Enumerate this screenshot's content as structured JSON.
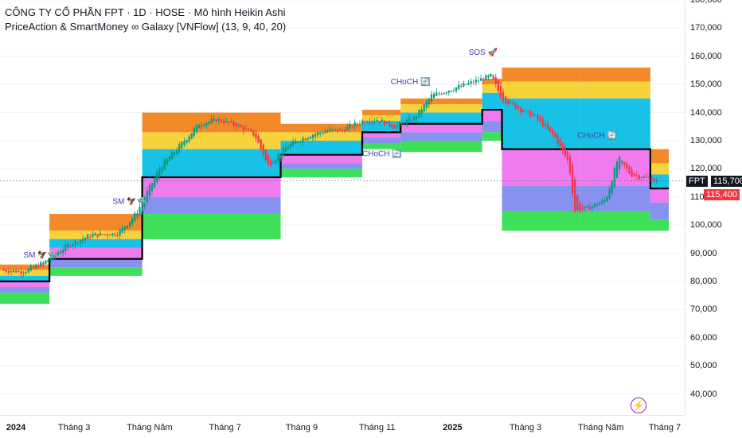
{
  "title": "CÔNG TY CỔ PHẦN FPT · 1D · HOSE · Mô hình Heikin Ashi",
  "indicator": "PriceAction & SmartMoney ∞ Galaxy [VNFlow] (13, 9, 40, 20)",
  "symbol": "FPT",
  "last_price": "115,700",
  "ha_price": "115,400",
  "colors": {
    "up": "#089981",
    "down": "#f23645",
    "orange": "#f38a2a",
    "yellow": "#f6d23b",
    "cyan": "#17c2e6",
    "pink": "#ee7cee",
    "blue": "#8691f0",
    "green": "#3ee05a",
    "trail": "#000000",
    "annotation": "#3e3bb0"
  },
  "price_axis": [
    "180,000",
    "170,000",
    "160,000",
    "150,000",
    "140,000",
    "130,000",
    "120,000",
    "110,000",
    "100,000",
    "90,000",
    "80,000",
    "70,000",
    "60,000",
    "50,000",
    "40,000"
  ],
  "time_axis": [
    {
      "label": "2024",
      "bold": true
    },
    {
      "label": "Tháng 3",
      "bold": false
    },
    {
      "label": "Tháng Năm",
      "bold": false
    },
    {
      "label": "Tháng 7",
      "bold": false
    },
    {
      "label": "Tháng 9",
      "bold": false
    },
    {
      "label": "Tháng 11",
      "bold": false
    },
    {
      "label": "2025",
      "bold": true
    },
    {
      "label": "Tháng 3",
      "bold": false
    },
    {
      "label": "Tháng Năm",
      "bold": false
    },
    {
      "label": "Tháng 7",
      "bold": false
    }
  ],
  "annotations": [
    {
      "text": "SM",
      "icons": "🦅🛸"
    },
    {
      "text": "SM",
      "icons": "🦅🛸"
    },
    {
      "text": "CHoCH",
      "icons": "🔄"
    },
    {
      "text": "CHoCH",
      "icons": "🔄"
    },
    {
      "text": "SOS",
      "icons": "🚀"
    },
    {
      "text": "CHoCH",
      "icons": "🔄"
    }
  ],
  "chart_data": {
    "type": "candlestick",
    "ylim": [
      40000,
      180000
    ],
    "price_path": [
      {
        "date": "2024-01-02",
        "price": 84000
      },
      {
        "date": "2024-01-20",
        "price": 83500
      },
      {
        "date": "2024-02-05",
        "price": 86500
      },
      {
        "date": "2024-02-25",
        "price": 93000
      },
      {
        "date": "2024-03-15",
        "price": 96500
      },
      {
        "date": "2024-04-05",
        "price": 97000
      },
      {
        "date": "2024-04-20",
        "price": 104000
      },
      {
        "date": "2024-05-10",
        "price": 121000
      },
      {
        "date": "2024-05-25",
        "price": 128000
      },
      {
        "date": "2024-06-10",
        "price": 136000
      },
      {
        "date": "2024-06-25",
        "price": 137500
      },
      {
        "date": "2024-07-10",
        "price": 135500
      },
      {
        "date": "2024-07-25",
        "price": 132000
      },
      {
        "date": "2024-08-05",
        "price": 121000
      },
      {
        "date": "2024-08-20",
        "price": 128000
      },
      {
        "date": "2024-09-05",
        "price": 131500
      },
      {
        "date": "2024-09-20",
        "price": 133500
      },
      {
        "date": "2024-10-05",
        "price": 134000
      },
      {
        "date": "2024-10-20",
        "price": 137000
      },
      {
        "date": "2024-11-01",
        "price": 137500
      },
      {
        "date": "2024-11-15",
        "price": 135000
      },
      {
        "date": "2024-12-01",
        "price": 138000
      },
      {
        "date": "2024-12-15",
        "price": 146000
      },
      {
        "date": "2025-01-01",
        "price": 148500
      },
      {
        "date": "2025-01-15",
        "price": 150500
      },
      {
        "date": "2025-02-01",
        "price": 153000
      },
      {
        "date": "2025-02-10",
        "price": 145000
      },
      {
        "date": "2025-02-25",
        "price": 141000
      },
      {
        "date": "2025-03-10",
        "price": 138000
      },
      {
        "date": "2025-03-25",
        "price": 131000
      },
      {
        "date": "2025-04-05",
        "price": 122000
      },
      {
        "date": "2025-04-10",
        "price": 105000
      },
      {
        "date": "2025-04-20",
        "price": 106000
      },
      {
        "date": "2025-05-05",
        "price": 109000
      },
      {
        "date": "2025-05-15",
        "price": 124000
      },
      {
        "date": "2025-05-25",
        "price": 118000
      },
      {
        "date": "2025-06-10",
        "price": 116500
      },
      {
        "date": "2025-06-15",
        "price": 115700
      }
    ],
    "segments": [
      {
        "start": "2024-01-01",
        "end": "2024-02-10",
        "trail": 80000,
        "bands": [
          86000,
          84000,
          82000,
          80000,
          78000,
          76000,
          72000
        ]
      },
      {
        "start": "2024-02-10",
        "end": "2024-04-25",
        "trail": 88000,
        "bands": [
          104000,
          98000,
          95000,
          92000,
          88000,
          85000,
          82000
        ]
      },
      {
        "start": "2024-04-25",
        "end": "2024-08-15",
        "trail": 117000,
        "bands": [
          140000,
          133000,
          127000,
          117000,
          110000,
          104000,
          95000
        ]
      },
      {
        "start": "2024-08-15",
        "end": "2024-10-20",
        "trail": 125000,
        "bands": [
          136000,
          133000,
          130000,
          125000,
          122000,
          120000,
          117000
        ]
      },
      {
        "start": "2024-10-20",
        "end": "2024-11-20",
        "trail": 133000,
        "bands": [
          141000,
          139000,
          137000,
          133000,
          131000,
          129000,
          127000
        ]
      },
      {
        "start": "2024-11-20",
        "end": "2025-01-25",
        "trail": 136000,
        "bands": [
          145000,
          143000,
          140000,
          136000,
          133000,
          130000,
          126000
        ]
      },
      {
        "start": "2025-01-25",
        "end": "2025-02-10",
        "trail": 141000,
        "bands": [
          152000,
          150000,
          147000,
          141000,
          137000,
          133000,
          130000
        ]
      },
      {
        "start": "2025-02-10",
        "end": "2025-04-15",
        "trail": 127000,
        "bands": [
          156000,
          151000,
          145000,
          127000,
          114000,
          105000,
          98000
        ]
      },
      {
        "start": "2025-04-15",
        "end": "2025-06-10",
        "trail": 127000,
        "bands": [
          156000,
          151000,
          145000,
          127000,
          114000,
          105000,
          98000
        ]
      },
      {
        "start": "2025-06-10",
        "end": "2025-06-25",
        "trail": 113000,
        "bands": [
          127000,
          122000,
          118000,
          113000,
          108000,
          102000,
          98000
        ]
      }
    ]
  }
}
